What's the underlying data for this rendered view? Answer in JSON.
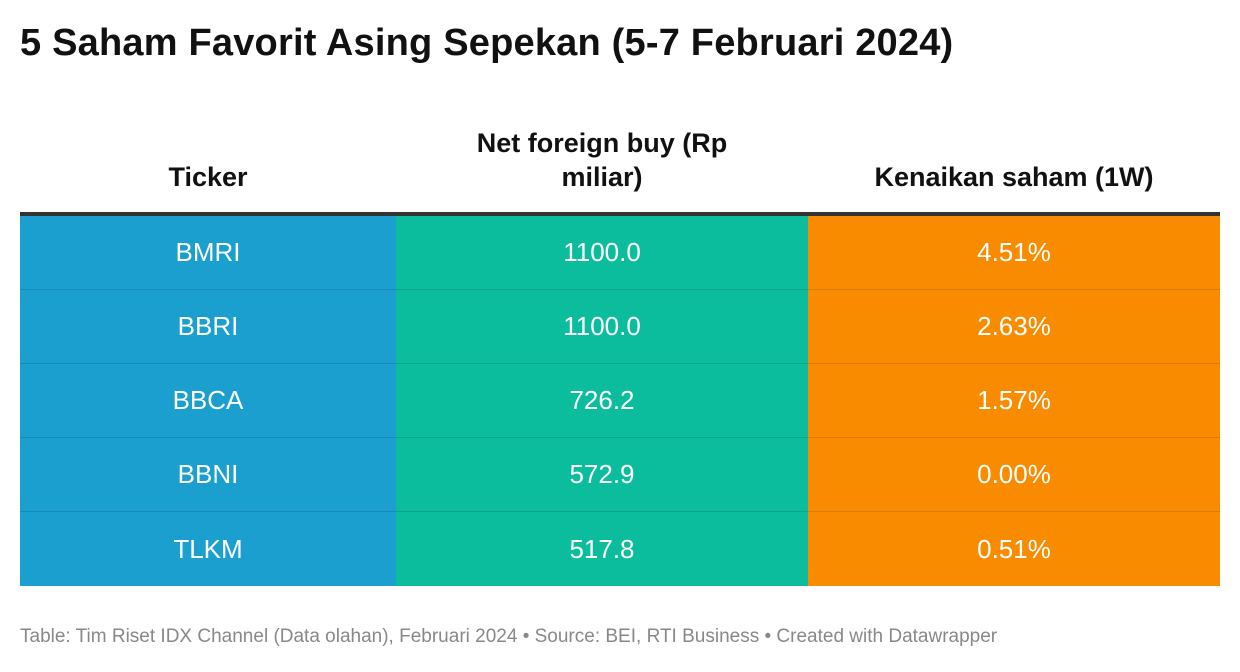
{
  "title": "5 Saham Favorit Asing Sepekan (5-7 Februari 2024)",
  "colors": {
    "ticker_column": "#1a9fcf",
    "net_buy_column": "#0bbd9d",
    "gain_column": "#f98b00",
    "header_rule": "#333333",
    "footer_text": "#888888"
  },
  "chart_data": {
    "type": "table",
    "columns": [
      "Ticker",
      "Net foreign buy (Rp miliar)",
      "Kenaikan saham (1W)"
    ],
    "rows": [
      [
        "BMRI",
        "1100.0",
        "4.51%"
      ],
      [
        "BBRI",
        "1100.0",
        "2.63%"
      ],
      [
        "BBCA",
        "726.2",
        "1.57%"
      ],
      [
        "BBNI",
        "572.9",
        "0.00%"
      ],
      [
        "TLKM",
        "517.8",
        "0.51%"
      ]
    ]
  },
  "footer": "Table: Tim Riset IDX Channel (Data olahan), Februari 2024 • Source: BEI, RTI Business • Created with Datawrapper"
}
